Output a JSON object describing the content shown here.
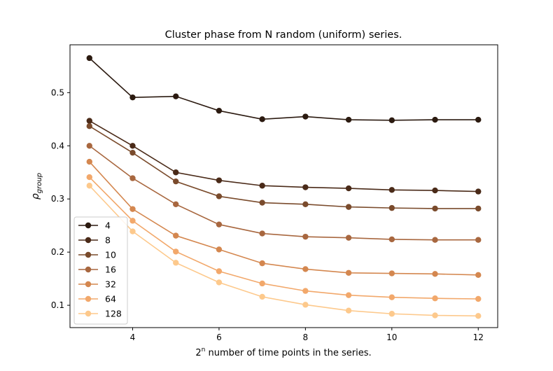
{
  "chart_data": {
    "type": "line",
    "title": "Cluster phase from N random (uniform) series.",
    "xlabel_base": "2",
    "xlabel_sup": "n",
    "xlabel_rest": " number of time points in the series.",
    "ylabel_main": "ρ",
    "ylabel_sub": "group",
    "x": [
      3,
      4,
      5,
      6,
      7,
      8,
      9,
      10,
      11,
      12
    ],
    "xlim": [
      2.55,
      12.45
    ],
    "ylim": [
      0.058,
      0.59
    ],
    "xticks": [
      4,
      6,
      8,
      10,
      12
    ],
    "yticks": [
      0.1,
      0.2,
      0.3,
      0.4,
      0.5
    ],
    "ytick_labels": [
      "0.1",
      "0.2",
      "0.3",
      "0.4",
      "0.5"
    ],
    "legend_position": "lower-left",
    "grid": false,
    "series": [
      {
        "name": "4",
        "color": "#2b1a10",
        "values": [
          0.565,
          0.491,
          0.493,
          0.466,
          0.45,
          0.455,
          0.449,
          0.448,
          0.449,
          0.449
        ]
      },
      {
        "name": "8",
        "color": "#4a2a18",
        "values": [
          0.447,
          0.4,
          0.35,
          0.335,
          0.325,
          0.322,
          0.32,
          0.317,
          0.316,
          0.314
        ]
      },
      {
        "name": "10",
        "color": "#7a4b2c",
        "values": [
          0.437,
          0.387,
          0.333,
          0.305,
          0.293,
          0.29,
          0.285,
          0.283,
          0.282,
          0.282
        ]
      },
      {
        "name": "16",
        "color": "#a8673f",
        "values": [
          0.4,
          0.339,
          0.29,
          0.252,
          0.235,
          0.229,
          0.227,
          0.224,
          0.223,
          0.223
        ]
      },
      {
        "name": "32",
        "color": "#d4874f",
        "values": [
          0.37,
          0.281,
          0.231,
          0.205,
          0.179,
          0.168,
          0.161,
          0.16,
          0.159,
          0.157
        ]
      },
      {
        "name": "64",
        "color": "#f2a86b",
        "values": [
          0.341,
          0.259,
          0.201,
          0.164,
          0.141,
          0.127,
          0.119,
          0.115,
          0.113,
          0.112
        ]
      },
      {
        "name": "128",
        "color": "#fdc98c",
        "values": [
          0.325,
          0.239,
          0.18,
          0.143,
          0.116,
          0.101,
          0.09,
          0.084,
          0.081,
          0.08
        ]
      }
    ]
  }
}
